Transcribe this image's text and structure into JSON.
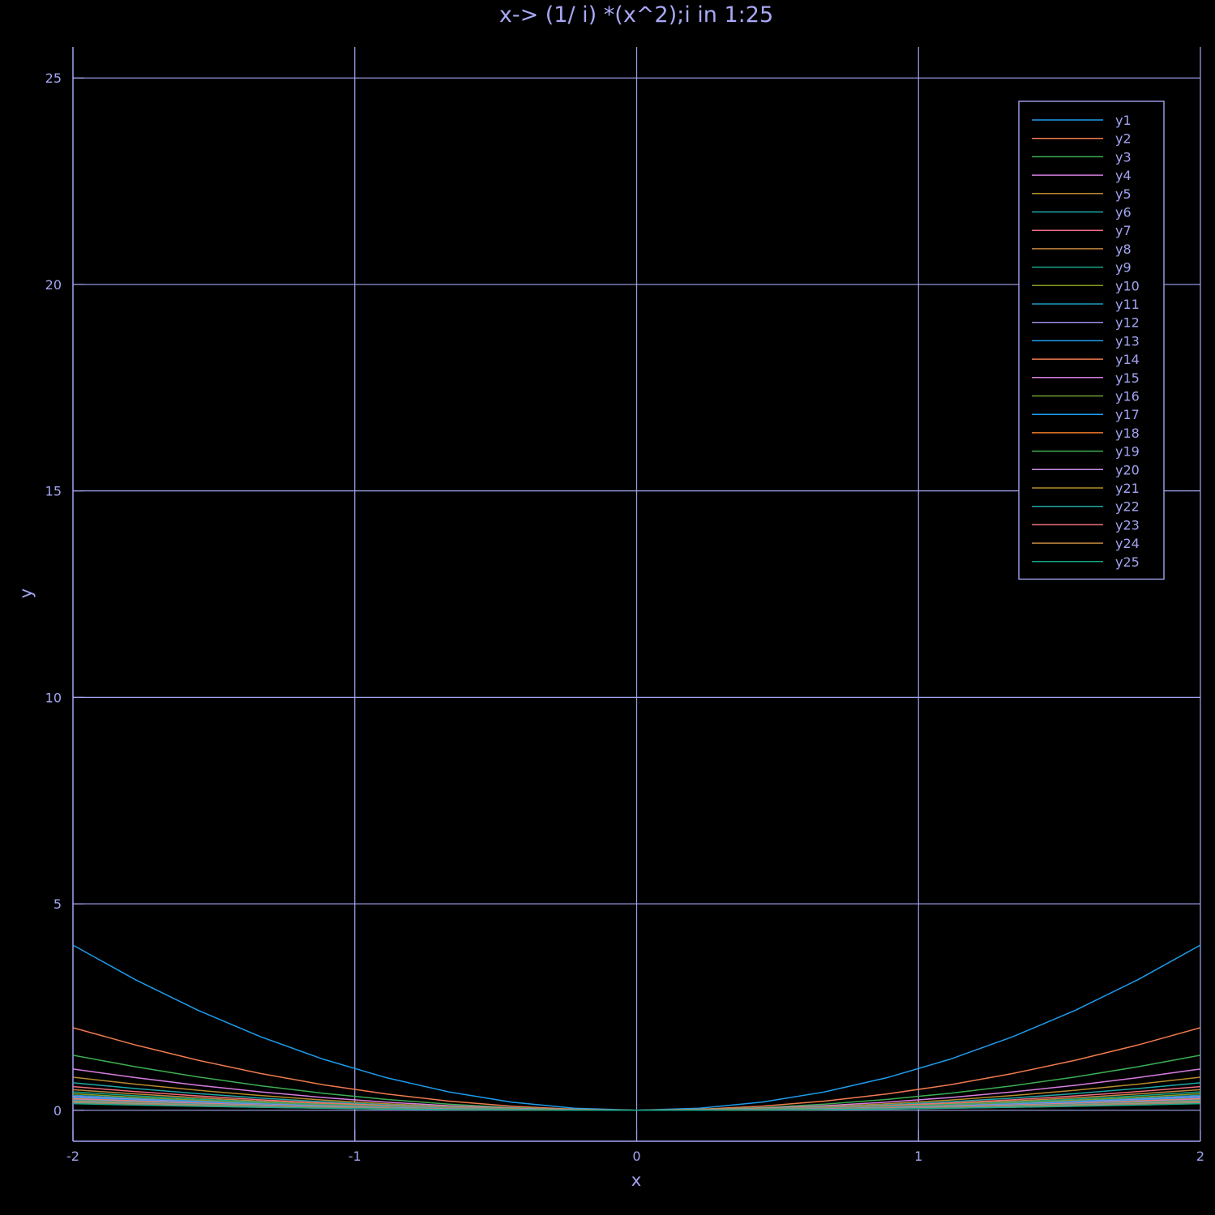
{
  "chart_data": {
    "type": "line",
    "title": "x-> (1/ i) *(x^2);i in 1:25",
    "xlabel": "x",
    "ylabel": "y",
    "xlim": [
      -2,
      2
    ],
    "ylim": [
      -0.75,
      25.75
    ],
    "x_ticks": [
      -2,
      -1,
      0,
      1,
      2
    ],
    "x_tick_labels": [
      "-2",
      "-1",
      "0",
      "1",
      "2"
    ],
    "y_ticks": [
      0,
      5,
      10,
      15,
      20,
      25
    ],
    "y_tick_labels": [
      "0",
      "5",
      "10",
      "15",
      "20",
      "25"
    ],
    "grid": true,
    "legend_position": "top-right",
    "x": [
      -2,
      -1.7778,
      -1.5556,
      -1.3333,
      -1.1111,
      -0.8889,
      -0.6667,
      -0.4444,
      -0.2222,
      0,
      0.2222,
      0.4444,
      0.6667,
      0.8889,
      1.1111,
      1.3333,
      1.5556,
      1.7778,
      2
    ],
    "series_formula": "y_i = x^2 / i",
    "series": [
      {
        "name": "y1",
        "divisor": 1,
        "color": "#1e9cec"
      },
      {
        "name": "y2",
        "divisor": 2,
        "color": "#f07a4f"
      },
      {
        "name": "y3",
        "divisor": 3,
        "color": "#3cae52"
      },
      {
        "name": "y4",
        "divisor": 4,
        "color": "#d77de0"
      },
      {
        "name": "y5",
        "divisor": 5,
        "color": "#b68b2c"
      },
      {
        "name": "y6",
        "divisor": 6,
        "color": "#1ea7a8"
      },
      {
        "name": "y7",
        "divisor": 7,
        "color": "#ee6e7e"
      },
      {
        "name": "y8",
        "divisor": 8,
        "color": "#c4863f"
      },
      {
        "name": "y9",
        "divisor": 9,
        "color": "#16a688"
      },
      {
        "name": "y10",
        "divisor": 10,
        "color": "#8b9b23"
      },
      {
        "name": "y11",
        "divisor": 11,
        "color": "#1e9bbf"
      },
      {
        "name": "y12",
        "divisor": 12,
        "color": "#9b8ee8"
      },
      {
        "name": "y13",
        "divisor": 13,
        "color": "#1e9cec"
      },
      {
        "name": "y14",
        "divisor": 14,
        "color": "#f07a4f"
      },
      {
        "name": "y15",
        "divisor": 15,
        "color": "#d77de0"
      },
      {
        "name": "y16",
        "divisor": 16,
        "color": "#6fa231"
      },
      {
        "name": "y17",
        "divisor": 17,
        "color": "#1e9cec"
      },
      {
        "name": "y18",
        "divisor": 18,
        "color": "#f07a2a"
      },
      {
        "name": "y19",
        "divisor": 19,
        "color": "#3cae52"
      },
      {
        "name": "y20",
        "divisor": 20,
        "color": "#c98ee8"
      },
      {
        "name": "y21",
        "divisor": 21,
        "color": "#b68b2c"
      },
      {
        "name": "y22",
        "divisor": 22,
        "color": "#1ea7a8"
      },
      {
        "name": "y23",
        "divisor": 23,
        "color": "#ee6e7e"
      },
      {
        "name": "y24",
        "divisor": 24,
        "color": "#c4863f"
      },
      {
        "name": "y25",
        "divisor": 25,
        "color": "#16a688"
      }
    ]
  },
  "colors": {
    "background": "#000000",
    "axis": "#a2a4f0",
    "text": "#a2a4f0",
    "title": "#a8a8f5"
  }
}
